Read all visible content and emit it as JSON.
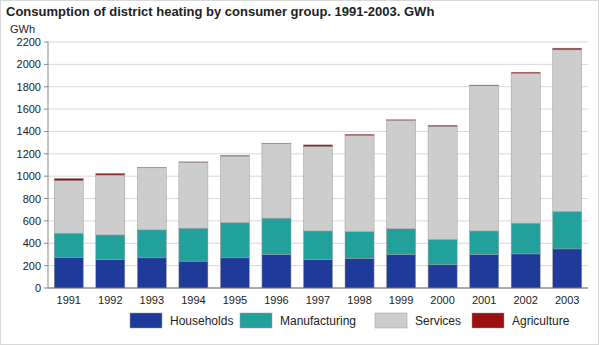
{
  "chart_data": {
    "type": "bar",
    "title": "Consumption of district heating by consumer group. 1991-2003. GWh",
    "y_label": "GWh",
    "stacked": true,
    "grid": true,
    "legend": "bottom",
    "categories": [
      "1991",
      "1992",
      "1993",
      "1994",
      "1995",
      "1996",
      "1997",
      "1998",
      "1999",
      "2000",
      "2001",
      "2002",
      "2003"
    ],
    "ylim": [
      0,
      2200
    ],
    "yticks": [
      0,
      200,
      400,
      600,
      800,
      1000,
      1200,
      1400,
      1600,
      1800,
      2000,
      2200
    ],
    "series": [
      {
        "name": "Households",
        "color": "#1f3a98",
        "values": [
          275,
          255,
          270,
          240,
          270,
          300,
          255,
          265,
          300,
          210,
          300,
          305,
          350
        ]
      },
      {
        "name": "Manufacturing",
        "color": "#22a09c",
        "values": [
          215,
          220,
          250,
          295,
          315,
          325,
          255,
          240,
          230,
          225,
          210,
          275,
          335
        ]
      },
      {
        "name": "Services",
        "color": "#cdcdcd",
        "values": [
          470,
          535,
          555,
          590,
          595,
          665,
          755,
          860,
          970,
          1010,
          1300,
          1340,
          1445
        ]
      },
      {
        "name": "Agriculture",
        "color": "#9e0f10",
        "values": [
          20,
          15,
          3,
          3,
          5,
          5,
          15,
          10,
          5,
          10,
          5,
          10,
          15
        ]
      }
    ]
  }
}
